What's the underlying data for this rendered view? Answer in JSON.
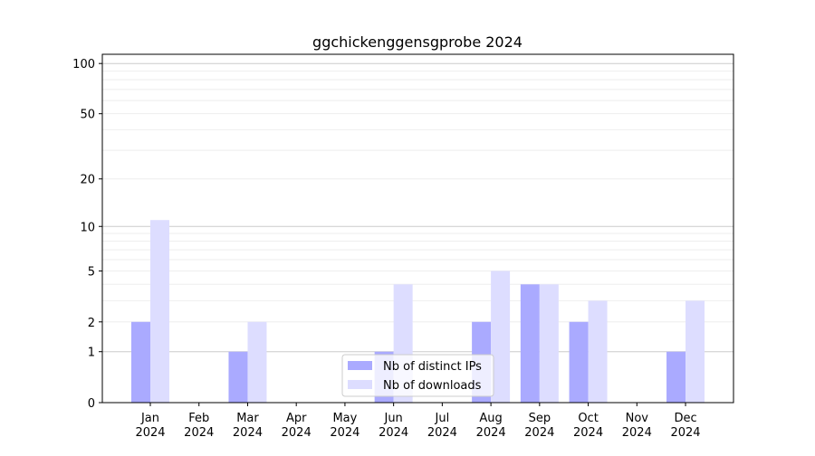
{
  "chart_data": {
    "type": "bar",
    "title": "ggchickenggensgprobe 2024",
    "xlabel": "",
    "ylabel": "",
    "yscale": "log(1+y)",
    "ylim": [
      0,
      110
    ],
    "yticks": [
      0,
      1,
      2,
      5,
      10,
      20,
      50,
      100
    ],
    "grid": true,
    "legend_position": "bottom-center",
    "categories": [
      "Jan\n2024",
      "Feb\n2024",
      "Mar\n2024",
      "Apr\n2024",
      "May\n2024",
      "Jun\n2024",
      "Jul\n2024",
      "Aug\n2024",
      "Sep\n2024",
      "Oct\n2024",
      "Nov\n2024",
      "Dec\n2024"
    ],
    "series": [
      {
        "name": "Nb of distinct IPs",
        "color": "#aaaaff",
        "values": [
          2,
          0,
          1,
          0,
          0,
          1,
          0,
          2,
          4,
          2,
          0,
          1
        ]
      },
      {
        "name": "Nb of downloads",
        "color": "#ddddff",
        "values": [
          11,
          0,
          2,
          0,
          0,
          4,
          0,
          5,
          4,
          3,
          0,
          3
        ]
      }
    ]
  }
}
